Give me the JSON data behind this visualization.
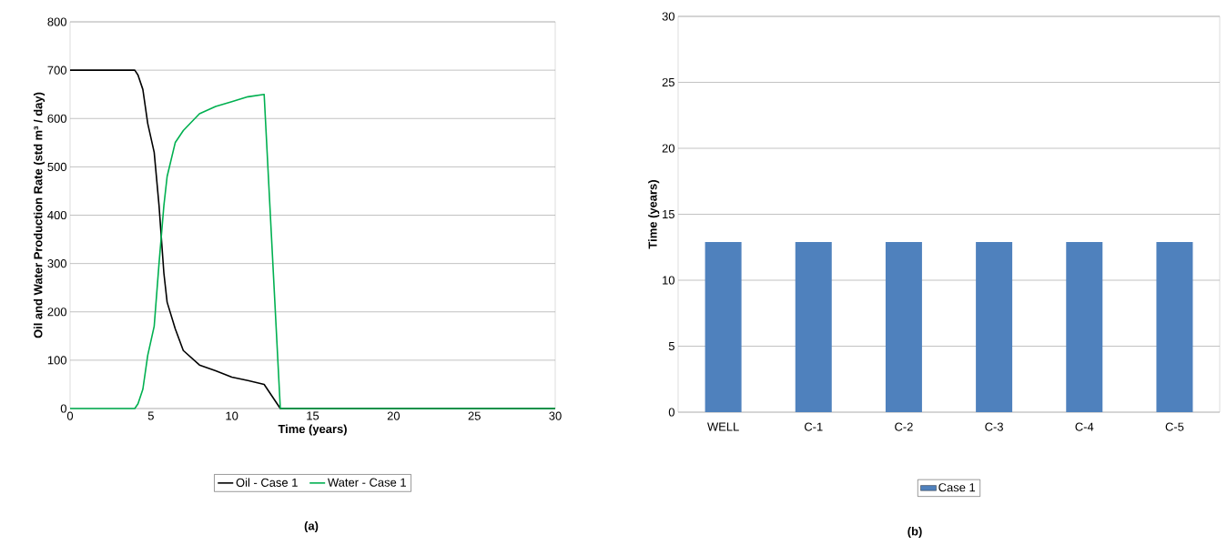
{
  "chart_data": [
    {
      "type": "line",
      "xlabel": "Time (years)",
      "ylabel": "Oil and Water Production Rate (std m³ / day)",
      "xlim": [
        0,
        30
      ],
      "xticks": [
        0,
        5,
        10,
        15,
        20,
        25,
        30
      ],
      "ylim": [
        0,
        800
      ],
      "yticks": [
        0,
        100,
        200,
        300,
        400,
        500,
        600,
        700,
        800
      ],
      "grid": "y",
      "legend": "bottom",
      "marker": "none",
      "annotations": [
        "(a)"
      ],
      "series": [
        {
          "name": "Oil - Case 1",
          "color": "#000000",
          "x": [
            0,
            4,
            4.2,
            4.5,
            4.8,
            5.2,
            5.5,
            5.8,
            6,
            6.5,
            7,
            8,
            9,
            10,
            11,
            12,
            13,
            30
          ],
          "values": [
            700,
            700,
            690,
            660,
            590,
            530,
            420,
            280,
            220,
            165,
            120,
            90,
            78,
            65,
            58,
            50,
            0,
            0
          ]
        },
        {
          "name": "Water - Case 1",
          "color": "#00b050",
          "x": [
            0,
            4,
            4.2,
            4.5,
            4.8,
            5.2,
            5.5,
            5.8,
            6,
            6.5,
            7,
            8,
            9,
            10,
            11,
            12,
            13,
            30
          ],
          "values": [
            0,
            0,
            10,
            40,
            110,
            170,
            300,
            420,
            480,
            550,
            575,
            610,
            625,
            635,
            645,
            650,
            0,
            0
          ]
        }
      ]
    },
    {
      "type": "bar",
      "ylabel": "Time (years)",
      "categories": [
        "WELL",
        "C-1",
        "C-2",
        "C-3",
        "C-4",
        "C-5"
      ],
      "ylim": [
        0,
        30
      ],
      "yticks": [
        0,
        5,
        10,
        15,
        20,
        25,
        30
      ],
      "grid": "y",
      "legend": "bottom",
      "annotations": [
        "(b)"
      ],
      "series": [
        {
          "name": "Case 1",
          "color": "#4f81bd",
          "values": [
            12.9,
            12.9,
            12.9,
            12.9,
            12.9,
            12.9
          ]
        }
      ]
    }
  ]
}
